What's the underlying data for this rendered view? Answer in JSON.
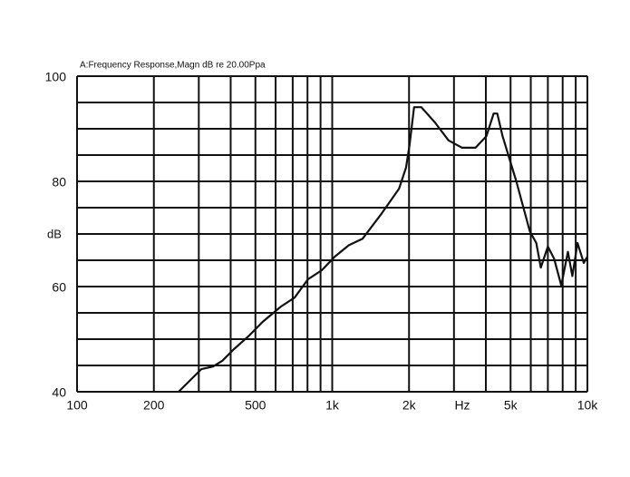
{
  "chart_data": {
    "type": "line",
    "title": "A:Frequency Response,Magn dB re 20.00Ppa",
    "x_label": "Hz",
    "y_label": "dB",
    "xscale": "log",
    "grid": true,
    "xlim": [
      100,
      10000
    ],
    "xticks": [
      100,
      200,
      500,
      {
        "value": 1000,
        "label": "1k"
      },
      {
        "value": 2000,
        "label": "2k"
      },
      {
        "value": 5000,
        "label": "5k"
      },
      {
        "value": 10000,
        "label": "10k"
      }
    ],
    "xminorticks": [
      300,
      400,
      600,
      700,
      800,
      900,
      3000,
      4000,
      6000,
      7000,
      8000,
      9000
    ],
    "ylim": [
      40,
      100
    ],
    "yticks": [
      40,
      60,
      80,
      100
    ],
    "yminorticks": [
      45,
      50,
      55,
      65,
      70,
      75,
      85,
      90,
      95
    ],
    "series": [
      {
        "color": "#111111",
        "x": [
          250,
          307,
          341,
          371,
          412,
          473,
          534,
          630,
          712,
          804,
          910,
          1025,
          1164,
          1315,
          1547,
          1827,
          1946,
          2010,
          2093,
          2234,
          2527,
          2855,
          3226,
          3645,
          4021,
          4292,
          4434,
          4651,
          5264,
          5951,
          6303,
          6567,
          7003,
          7409,
          7904,
          8385,
          8730,
          9150,
          9680,
          10000
        ],
        "values": [
          40,
          44.3,
          44.8,
          45.9,
          48.1,
          50.7,
          53.3,
          56.2,
          57.9,
          61.4,
          63.1,
          65.7,
          67.9,
          69.1,
          73.6,
          78.6,
          82.6,
          86.9,
          94.1,
          94.1,
          91.2,
          87.8,
          86.4,
          86.4,
          88.6,
          92.9,
          92.9,
          88.6,
          80,
          70.5,
          68.3,
          63.6,
          67.6,
          65.3,
          60.2,
          66.6,
          62,
          68.3,
          64.5,
          65.7
        ]
      }
    ]
  }
}
